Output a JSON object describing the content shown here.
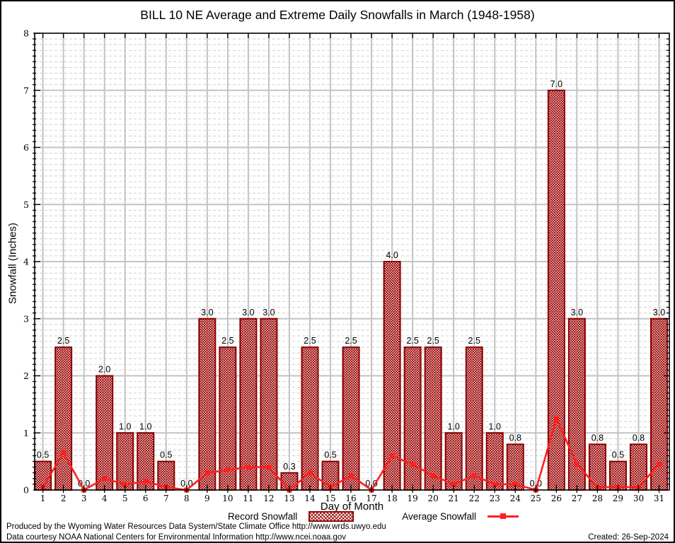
{
  "title": "BILL 10 NE Average and Extreme Daily Snowfalls in March (1948-1958)",
  "legend": {
    "record_label": "Record Snowfall",
    "average_label": "Average Snowfall"
  },
  "footer": {
    "produced_by": "Produced by the Wyoming Water Resources Data System/State Climate Office http://www.wrds.uwyo.edu",
    "data_courtesy": "Data courtesy NOAA National Centers for Environmental Information http://www.ncei.noaa.gov",
    "created": "Created: 26-Sep-2024"
  },
  "colors": {
    "bar_hatch": "#980000",
    "bar_border": "#8b0000",
    "line": "#ff1f1f",
    "grid_major": "#c3c3c3",
    "grid_minor": "#d0d0d0",
    "axis": "#000000"
  },
  "chart_data": {
    "type": "bar",
    "title": "BILL 10 NE Average and Extreme Daily Snowfalls in March (1948-1958)",
    "xlabel": "Day of Month",
    "ylabel": "Snowfall (Inches)",
    "xlim": [
      0.6,
      31.5
    ],
    "ylim": [
      0,
      8
    ],
    "ytick_step": 1,
    "yminor_step": 0.1,
    "grid": "major solid gray + minor dashed horizontal",
    "legend_position": "bottom-center",
    "categories": [
      1,
      2,
      3,
      4,
      5,
      6,
      7,
      8,
      9,
      10,
      11,
      12,
      13,
      14,
      15,
      16,
      17,
      18,
      19,
      20,
      21,
      22,
      23,
      24,
      25,
      26,
      27,
      28,
      29,
      30,
      31
    ],
    "series": [
      {
        "name": "Record Snowfall",
        "type": "bar",
        "values": [
          0.5,
          2.5,
          0.0,
          2.0,
          1.0,
          1.0,
          0.5,
          0.0,
          3.0,
          2.5,
          3.0,
          3.0,
          0.3,
          2.5,
          0.5,
          2.5,
          0.0,
          4.0,
          2.5,
          2.5,
          1.0,
          2.5,
          1.0,
          0.8,
          0.0,
          7.0,
          3.0,
          0.8,
          0.5,
          0.8,
          3.0
        ],
        "labels": [
          "0.5",
          "2.5",
          "0.0",
          "2.0",
          "1.0",
          "1.0",
          "0.5",
          "0.0",
          "3.0",
          "2.5",
          "3.0",
          "3.0",
          "0.3",
          "2.5",
          "0.5",
          "2.5",
          "0.0",
          "4.0",
          "2.5",
          "2.5",
          "1.0",
          "2.5",
          "1.0",
          "0.8",
          "0.0",
          "7.0",
          "3.0",
          "0.8",
          "0.5",
          "0.8",
          "3.0"
        ]
      },
      {
        "name": "Average Snowfall",
        "type": "line",
        "values": [
          0.05,
          0.65,
          0.0,
          0.2,
          0.1,
          0.15,
          0.05,
          0.0,
          0.3,
          0.35,
          0.4,
          0.4,
          0.0,
          0.3,
          0.05,
          0.25,
          0.0,
          0.6,
          0.45,
          0.25,
          0.1,
          0.25,
          0.1,
          0.1,
          0.0,
          1.25,
          0.45,
          0.05,
          0.05,
          0.05,
          0.45
        ]
      }
    ]
  }
}
